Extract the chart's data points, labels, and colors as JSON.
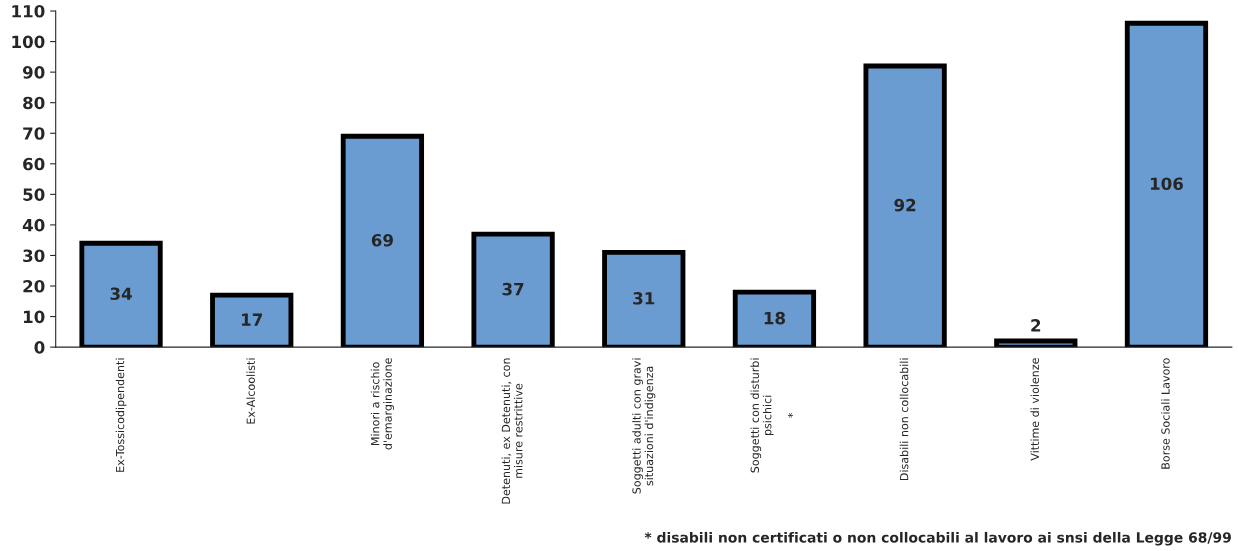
{
  "chart_data": {
    "type": "bar",
    "categories": [
      "Ex-Tossicodipendenti",
      "Ex-Alcoolisti",
      "Minori a rischio\nd'emarginazione",
      "Detenuti, ex Detenuti, con\nmisure restrittive",
      "Soggetti adulti con gravi\nsituazioni d'indigenza",
      "Soggetti con disturbi\npsichici\n\n*",
      "Disabili non collocabili",
      "Vittime di violenze",
      "Borse Sociali Lavoro"
    ],
    "values": [
      34,
      17,
      69,
      37,
      31,
      18,
      92,
      2,
      106
    ],
    "color": "#6a9bd1",
    "ylim": [
      0,
      110
    ],
    "yticks": [
      0,
      10,
      20,
      30,
      40,
      50,
      60,
      70,
      80,
      90,
      100,
      110
    ],
    "data_labels": true,
    "grid": false,
    "annotations": [
      "* disabili non certificati o non collocabili al lavoro ai snsi della Legge 68/99"
    ]
  }
}
